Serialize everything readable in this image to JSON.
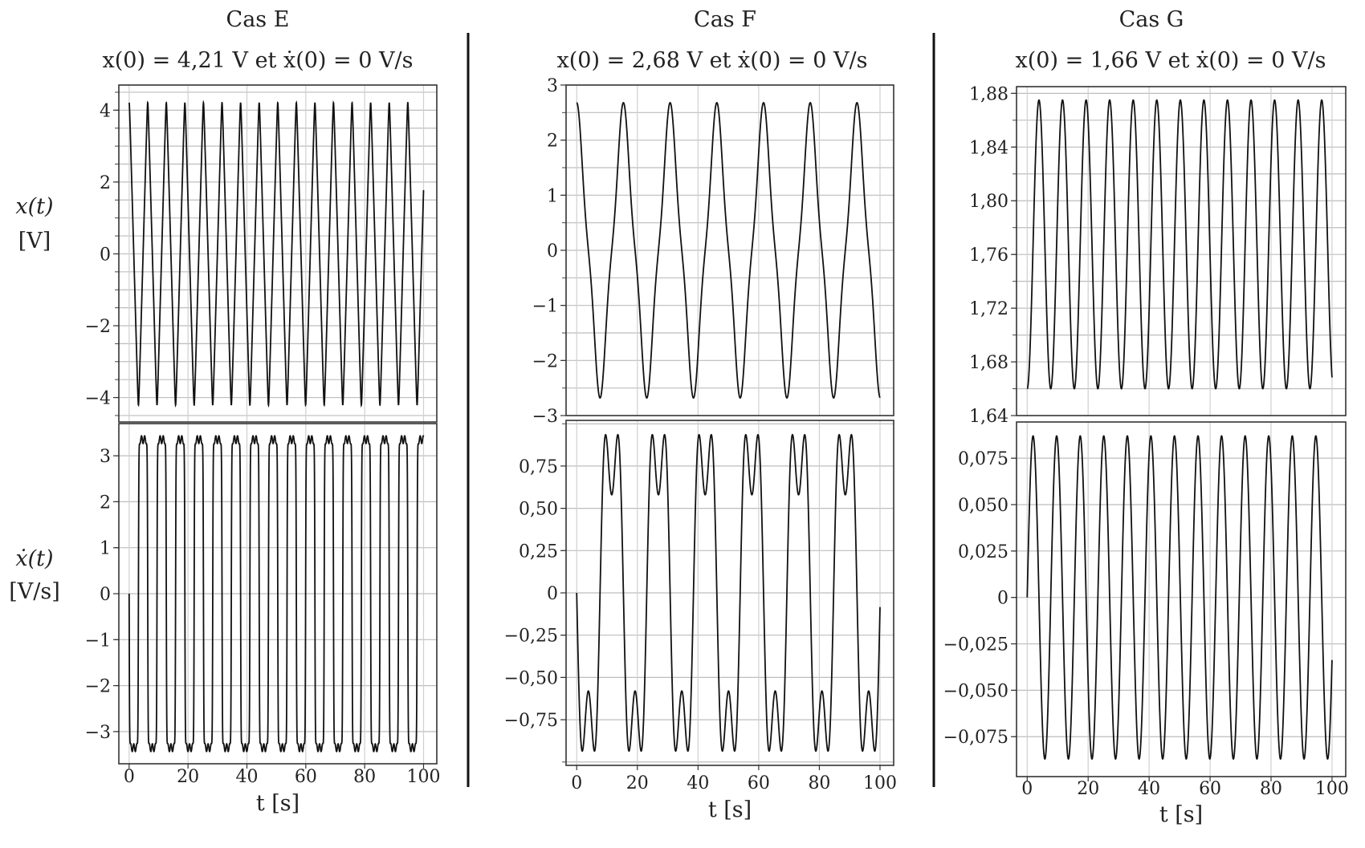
{
  "chart_data": [
    {
      "type": "line",
      "title": "Cas E",
      "subtitle": "x(0) = 4,21 V et ẋ(0) = 0 V/s",
      "xlabel": "t [s]",
      "xlim": [
        -3.5,
        104.5
      ],
      "xticks": [
        {
          "v": 0,
          "l": "0"
        },
        {
          "v": 20,
          "l": "20"
        },
        {
          "v": 40,
          "l": "40"
        },
        {
          "v": 60,
          "l": "60"
        },
        {
          "v": 80,
          "l": "80"
        },
        {
          "v": 100,
          "l": "100"
        }
      ],
      "grid": true,
      "panels": [
        {
          "ylabel": [
            "x(t)",
            "[V]"
          ],
          "ylim": [
            -4.68,
            4.7
          ],
          "yticks": [
            {
              "v": 4,
              "l": "4"
            },
            {
              "v": 2,
              "l": "2"
            },
            {
              "v": 0,
              "l": "0"
            },
            {
              "v": -2,
              "l": "−2"
            },
            {
              "v": -4,
              "l": "−4"
            }
          ],
          "grid_step": 0.5,
          "series": {
            "name": "x(t)",
            "model": "near-triangle",
            "offset": 0,
            "amplitude": 4.21,
            "period": 6.31,
            "t_range": [
              0,
              100
            ]
          }
        },
        {
          "ylabel": [
            "ẋ(t)",
            "[V/s]"
          ],
          "ylim": [
            -3.7,
            3.7
          ],
          "yticks": [
            {
              "v": 3,
              "l": "3"
            },
            {
              "v": 2,
              "l": "2"
            },
            {
              "v": 1,
              "l": "1"
            },
            {
              "v": 0,
              "l": "0"
            },
            {
              "v": -1,
              "l": "−1"
            },
            {
              "v": -2,
              "l": "−2"
            },
            {
              "v": -3,
              "l": "−3"
            }
          ],
          "grid_step": 1,
          "series": {
            "name": "ẋ(t)",
            "model": "near-square",
            "offset": 0,
            "amplitude": 3.35,
            "period": 6.31,
            "t_range": [
              0,
              100
            ]
          }
        }
      ]
    },
    {
      "type": "line",
      "title": "Cas F",
      "subtitle": "x(0) = 2,68 V et ẋ(0) = 0 V/s",
      "xlabel": "t [s]",
      "xlim": [
        -3.5,
        104.5
      ],
      "xticks": [
        {
          "v": 0,
          "l": "0"
        },
        {
          "v": 20,
          "l": "20"
        },
        {
          "v": 40,
          "l": "40"
        },
        {
          "v": 60,
          "l": "60"
        },
        {
          "v": 80,
          "l": "80"
        },
        {
          "v": 100,
          "l": "100"
        }
      ],
      "grid": true,
      "panels": [
        {
          "ylabel": [],
          "ylim": [
            -3,
            3
          ],
          "yticks": [
            {
              "v": 3,
              "l": "3"
            },
            {
              "v": 2,
              "l": "2"
            },
            {
              "v": 1,
              "l": "1"
            },
            {
              "v": 0,
              "l": "0"
            },
            {
              "v": -1,
              "l": "−1"
            },
            {
              "v": -2,
              "l": "−2"
            },
            {
              "v": -3,
              "l": "−3"
            }
          ],
          "grid_step": 0.5,
          "series": {
            "name": "x(t)",
            "model": "two-harmonic-position",
            "a": 0.95,
            "b": 0.37,
            "amplitude": 2.68,
            "period": 15.4,
            "t_range": [
              0,
              100
            ]
          }
        },
        {
          "ylabel": [],
          "ylim": [
            -1.02,
            1.02
          ],
          "yticks": [
            {
              "v": 0.75,
              "l": "0,75"
            },
            {
              "v": 0.5,
              "l": "0,50"
            },
            {
              "v": 0.25,
              "l": "0,25"
            },
            {
              "v": 0,
              "l": "0"
            },
            {
              "v": -0.25,
              "l": "−0,25"
            },
            {
              "v": -0.5,
              "l": "−0,50"
            },
            {
              "v": -0.75,
              "l": "−0,75"
            }
          ],
          "grid_step": 0.25,
          "series": {
            "name": "ẋ(t)",
            "model": "two-harmonic-velocity",
            "a": 0.95,
            "b": 0.37,
            "peak": 0.93,
            "dip": 0.58,
            "period": 15.4,
            "t_range": [
              0,
              100
            ]
          }
        }
      ]
    },
    {
      "type": "line",
      "title": "Cas G",
      "subtitle": "x(0) = 1,66 V et ẋ(0) = 0 V/s",
      "xlabel": "t [s]",
      "xlim": [
        -3.5,
        104.5
      ],
      "xticks": [
        {
          "v": 0,
          "l": "0"
        },
        {
          "v": 20,
          "l": "20"
        },
        {
          "v": 40,
          "l": "40"
        },
        {
          "v": 60,
          "l": "60"
        },
        {
          "v": 80,
          "l": "80"
        },
        {
          "v": 100,
          "l": "100"
        }
      ],
      "grid": true,
      "panels": [
        {
          "ylabel": [],
          "ylim": [
            1.64,
            1.885
          ],
          "yticks": [
            {
              "v": 1.88,
              "l": "1,88"
            },
            {
              "v": 1.84,
              "l": "1,84"
            },
            {
              "v": 1.8,
              "l": "1,80"
            },
            {
              "v": 1.76,
              "l": "1,76"
            },
            {
              "v": 1.72,
              "l": "1,72"
            },
            {
              "v": 1.68,
              "l": "1,68"
            },
            {
              "v": 1.64,
              "l": "1,64"
            }
          ],
          "grid_step": 0.02,
          "series": {
            "name": "x(t)",
            "model": "sine-position",
            "offset": 1.7675,
            "amplitude": 0.1075,
            "period": 7.73,
            "t_range": [
              0,
              100
            ]
          }
        },
        {
          "ylabel": [],
          "ylim": [
            -0.0965,
            0.0945
          ],
          "yticks": [
            {
              "v": 0.075,
              "l": "0,075"
            },
            {
              "v": 0.05,
              "l": "0,050"
            },
            {
              "v": 0.025,
              "l": "0,025"
            },
            {
              "v": 0,
              "l": "0"
            },
            {
              "v": -0.025,
              "l": "−0,025"
            },
            {
              "v": -0.05,
              "l": "−0,050"
            },
            {
              "v": -0.075,
              "l": "−0,075"
            }
          ],
          "grid_step": 0.025,
          "series": {
            "name": "ẋ(t)",
            "model": "sine-velocity",
            "offset": 0,
            "amplitude": 0.087,
            "period": 7.73,
            "t_range": [
              0,
              100
            ]
          }
        }
      ]
    }
  ]
}
